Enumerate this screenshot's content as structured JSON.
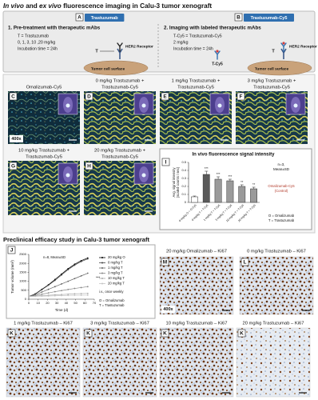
{
  "title_parts": [
    "In vivo",
    " and ",
    "ex vivo",
    " fluorescence imaging in Calu-3 tumor xenograft"
  ],
  "schematic": {
    "step1": {
      "letter": "A",
      "antibody_name": "Trastuzumab",
      "heading": "1. Pre-treatment with therapeutic mAbs",
      "details": [
        "T = Trastuzumab",
        "0, 1, 3, 10 ,20 mg/kg",
        "Incubation time = 24h"
      ],
      "antibody_symbol": "T",
      "receptor": "HER2 Receptor",
      "surface": "Tumor cell surface"
    },
    "step2": {
      "letter": "B",
      "antibody_name": "Trastuzumab-Cy5",
      "heading": "2. Imaging with labeled therapeutic mAbs",
      "details": [
        "T-Cy5 = Trastuzumab-Cy5",
        "2 mg/kg",
        "Incubation time = 24h"
      ],
      "probe_symbol": "T-Cy5",
      "antibody_symbol": "T",
      "receptor": "HER2 Receptor",
      "surface": "Tumor cell surface"
    }
  },
  "fluorescence_panels": [
    {
      "letter": "C",
      "caption": [
        "Omalizumab-Cy5"
      ],
      "magnification": "400x"
    },
    {
      "letter": "D",
      "caption": [
        "0 mg/kg Trastuzumab +",
        "Trastuzumab-Cy5"
      ]
    },
    {
      "letter": "E",
      "caption": [
        "1 mg/kg Trastuzumab +",
        "Trastuzumab-Cy5"
      ]
    },
    {
      "letter": "F",
      "caption": [
        "3 mg/kg Trastuzumab +",
        "Trastuzumab-Cy5"
      ]
    },
    {
      "letter": "G",
      "caption": [
        "10 mg/kg Trastuzumab +",
        "Trastuzumab-Cy5"
      ]
    },
    {
      "letter": "H",
      "caption": [
        "20 mg/kg Trastuzumab +",
        "Trastuzumab-Cy5"
      ]
    }
  ],
  "chart_i": {
    "type": "bar",
    "letter": "I",
    "title": "In vivo fluorescence signal intensity",
    "y_label": [
      "Avg. signal intensity",
      "(scaled counts / sec)"
    ],
    "categories": [
      "0 mg/kg O + O-Cy5",
      "0 mg/kg T + T-Cy5",
      "1 mg/kg T + T-Cy5",
      "3 mg/kg T + T-Cy5",
      "10 mg/kg T + T-Cy5",
      "20 mg/kg T + T-Cy5"
    ],
    "values": [
      0.07,
      0.35,
      0.29,
      0.27,
      0.2,
      0.17
    ],
    "errors": [
      0.01,
      0.04,
      0.03,
      0.02,
      0.02,
      0.02
    ],
    "colors": [
      "#ffffff",
      "#5a5a5a",
      "#9a9a9a",
      "#9a9a9a",
      "#9a9a9a",
      "#9a9a9a"
    ],
    "significance": [
      "***",
      "***",
      "***",
      "**",
      "**"
    ],
    "ylim": [
      0,
      0.5
    ],
    "yticks": [
      0,
      0.1,
      0.2,
      0.3,
      0.4,
      0.5
    ],
    "stats": [
      "n=3,",
      "Mean±SD"
    ],
    "control_note": [
      "Omalizumab-Cy5",
      "(Control)"
    ],
    "key": [
      "O = Omalizumab",
      "T = Trastuzumab"
    ]
  },
  "efficacy_title": "Preclinical efficacy study in Calu-3 tumor xenograft",
  "chart_j": {
    "type": "line",
    "letter": "J",
    "x_label": "Time (d)",
    "y_label": "Tumor volume (mm³)",
    "x": [
      0,
      7,
      14,
      21,
      28,
      35,
      42,
      49,
      56,
      63
    ],
    "series": [
      {
        "name": "20 mg/kg O",
        "color": "#000000",
        "values": [
          150,
          300,
          550,
          800,
          1100,
          1400,
          1700,
          1950,
          2150,
          2300
        ]
      },
      {
        "name": "0 mg/kg T",
        "color": "#444444",
        "values": [
          150,
          290,
          530,
          780,
          1050,
          1350,
          1650,
          1900,
          2100,
          2250
        ]
      },
      {
        "name": "1 mg/kg T",
        "color": "#666666",
        "values": [
          150,
          250,
          400,
          550,
          700,
          850,
          1000,
          1150,
          1300,
          1450
        ]
      },
      {
        "name": "3 mg/kg T",
        "color": "#888888",
        "values": [
          150,
          200,
          280,
          350,
          420,
          480,
          540,
          600,
          650,
          700
        ]
      },
      {
        "name": "10 mg/kg T",
        "color": "#aaaaaa",
        "values": [
          150,
          170,
          200,
          220,
          240,
          260,
          280,
          300,
          310,
          320
        ]
      },
      {
        "name": "20 mg/kg T",
        "color": "#c4c4c4",
        "values": [
          150,
          160,
          170,
          180,
          190,
          200,
          210,
          215,
          220,
          225
        ]
      }
    ],
    "xlim": [
      0,
      70
    ],
    "xticks": [
      0,
      10,
      20,
      30,
      40,
      50,
      60,
      70
    ],
    "ylim": [
      0,
      2500
    ],
    "yticks": [
      0,
      500,
      1000,
      1500,
      2000,
      2500
    ],
    "stats": "n=8, Mean±SD",
    "significance": "***",
    "dosing": "i.v., once weekly",
    "key": [
      "O = Omalizumab",
      "T = Trastuzumab"
    ]
  },
  "ki67_panels": [
    {
      "letter": "M",
      "caption": "20 mg/kg Omalizumab – Ki67",
      "magnification": "400x"
    },
    {
      "letter": "L",
      "caption": "0 mg/kg Trastuzumab – Ki67"
    },
    {
      "letter": "K",
      "caption": "1 mg/kg Trastuzumab – Ki67"
    },
    {
      "letter": "K",
      "caption": "3 mg/kg Trastuzumab – Ki67"
    },
    {
      "letter": "K",
      "caption": "10 mg/kg Trastuzumab – Ki67"
    },
    {
      "letter": "K",
      "caption": "20 mg/kg Trastuzumab – Ki67"
    }
  ]
}
